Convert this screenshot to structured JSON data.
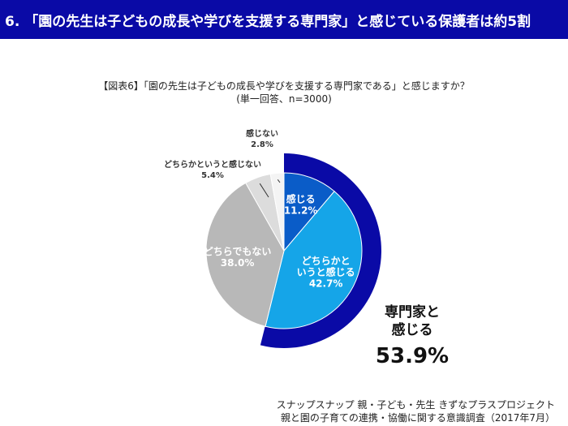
{
  "header": {
    "title": "6. 「園の先生は子どもの成長や学びを支援する専門家」と感じている保護者は約5割"
  },
  "chart_data": {
    "type": "pie",
    "title": "【図表6】「園の先生は子どもの成長や学びを支援する専門家である」と感じますか？",
    "subtitle": "(単一回答、n=3000)",
    "slices": [
      {
        "label": "感じる",
        "label_lines": [
          "感じる"
        ],
        "value": 11.2,
        "display": "11.2%",
        "color": "#0a5cc8"
      },
      {
        "label": "どちらかというと感じる",
        "label_lines": [
          "どちらかと",
          "いうと感じる"
        ],
        "value": 42.7,
        "display": "42.7%",
        "color": "#15a5e8"
      },
      {
        "label": "どちらでもない",
        "label_lines": [
          "どちらでもない"
        ],
        "value": 38.0,
        "display": "38.0%",
        "color": "#b8b8b8"
      },
      {
        "label": "どちらかというと感じない",
        "label_lines": [
          "どちらかというと感じない"
        ],
        "value": 5.4,
        "display": "5.4%",
        "color": "#dcdcdc"
      },
      {
        "label": "感じない",
        "label_lines": [
          "感じない"
        ],
        "value": 2.8,
        "display": "2.8%",
        "color": "#f4f4f4"
      }
    ],
    "highlight": {
      "label_lines": [
        "専門家と",
        "感じる"
      ],
      "value": 53.9,
      "display": "53.9%",
      "color": "#0a0aa6"
    }
  },
  "footer": {
    "line1": "スナップスナップ 親・子ども・先生 きずなプラスプロジェクト",
    "line2": "親と園の子育ての連携・協働に関する意識調査（2017年7月）"
  }
}
